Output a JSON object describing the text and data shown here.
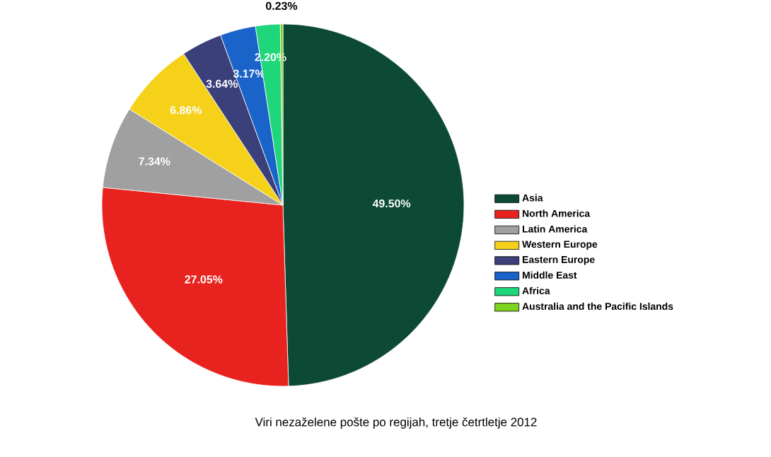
{
  "chart_data": {
    "type": "pie",
    "title": "Viri nezaželene pošte po regijah, tretje četrtletje 2012",
    "categories": [
      "Asia",
      "North America",
      "Latin America",
      "Western Europe",
      "Eastern Europe",
      "Middle East",
      "Africa",
      "Australia and the Pacific Islands"
    ],
    "values": [
      49.5,
      27.05,
      7.34,
      6.86,
      3.64,
      3.17,
      2.2,
      0.23
    ],
    "colors": [
      "#0d4a35",
      "#e8231f",
      "#a0a0a0",
      "#f5d11a",
      "#3b3f7a",
      "#1a63c8",
      "#1fd67a",
      "#7ed321"
    ],
    "value_labels": [
      "49.50%",
      "27.05%",
      "7.34%",
      "6.86%",
      "3.64%",
      "3.17%",
      "2.20%",
      "0.23%"
    ],
    "legend": "right"
  }
}
